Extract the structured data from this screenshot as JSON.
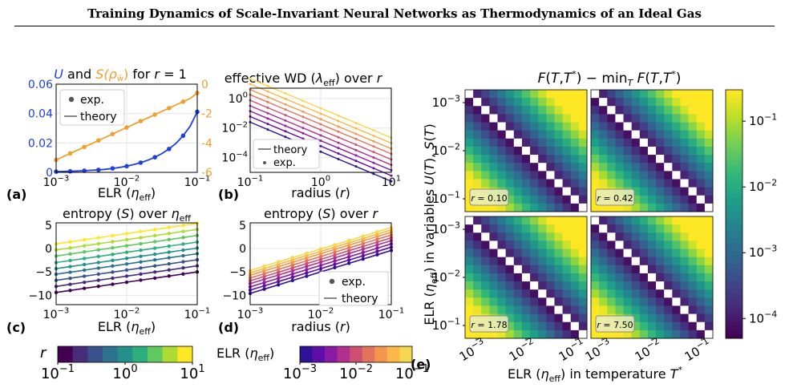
{
  "header": {
    "title": "Training Dynamics of Scale-Invariant Neural Networks as Thermodynamics of an Ideal Gas"
  },
  "panel_labels": {
    "a": "(a)",
    "b": "(b)",
    "c": "(c)",
    "d": "(d)",
    "e": "(e)"
  },
  "colors": {
    "blue": "#1f3fe0",
    "orange": "#f0a030",
    "gridline": "#e6e6e6"
  },
  "chart_data": [
    {
      "id": "a",
      "type": "line",
      "title": "U and S(ρw̄) for r = 1",
      "title_parts": {
        "p1": "U",
        "p2": " and ",
        "p3": "S(ρ",
        "p4": "w̄",
        "p5": ")",
        "p6": " for ",
        "p7": "r",
        "p8": " = 1"
      },
      "xlabel": "ELR (ηeff)",
      "xlabel_parts": {
        "pre": "ELR (",
        "sym": "η",
        "sub": "eff",
        "post": ")"
      },
      "xscale": "log",
      "xlim": [
        0.001,
        0.1
      ],
      "xticks": [
        0.001,
        0.01,
        0.1
      ],
      "xtick_labels": [
        "10^-3",
        "10^-2",
        "10^-1"
      ],
      "ylim_left": [
        0,
        0.06
      ],
      "yticks_left": [
        0,
        0.02,
        0.04,
        0.06
      ],
      "ytick_labels_left": [
        "0",
        "0.02",
        "0.04",
        "0.06"
      ],
      "ylim_right": [
        -6,
        0
      ],
      "yticks_right": [
        -6,
        -4,
        -2,
        0
      ],
      "ytick_labels_right": [
        "-6",
        "-4",
        "-2",
        "0"
      ],
      "legend": {
        "placement": "top-left",
        "entries": [
          "exp.",
          "theory"
        ]
      },
      "series": [
        {
          "name": "U",
          "axis": "left",
          "x": [
            0.001,
            0.00126,
            0.00158,
            0.002,
            0.00251,
            0.00316,
            0.00398,
            0.00501,
            0.00631,
            0.00794,
            0.01,
            0.0126,
            0.0158,
            0.02,
            0.0251,
            0.0316,
            0.0398,
            0.0501,
            0.0631,
            0.0794,
            0.1
          ],
          "y": [
            0.0005,
            0.0006,
            0.0007,
            0.0009,
            0.0011,
            0.0014,
            0.0017,
            0.0021,
            0.0027,
            0.0034,
            0.0042,
            0.0053,
            0.0066,
            0.0083,
            0.0103,
            0.0128,
            0.0159,
            0.0198,
            0.0249,
            0.0314,
            0.0412
          ]
        },
        {
          "name": "S",
          "axis": "right",
          "x": [
            0.001,
            0.00126,
            0.00158,
            0.002,
            0.00251,
            0.00316,
            0.00398,
            0.00501,
            0.00631,
            0.00794,
            0.01,
            0.0126,
            0.0158,
            0.02,
            0.0251,
            0.0316,
            0.0398,
            0.0501,
            0.0631,
            0.0794,
            0.1
          ],
          "y": [
            -5.15,
            -4.93,
            -4.71,
            -4.49,
            -4.27,
            -4.05,
            -3.83,
            -3.61,
            -3.39,
            -3.17,
            -2.95,
            -2.73,
            -2.51,
            -2.29,
            -2.07,
            -1.85,
            -1.63,
            -1.41,
            -1.19,
            -0.97,
            -0.6
          ]
        }
      ]
    },
    {
      "id": "b",
      "type": "line",
      "title": "effective WD (λeff) over r",
      "title_parts": {
        "p1": "effective WD (",
        "p2": "λ",
        "p3": "eff",
        "p4": ") over ",
        "p5": "r"
      },
      "xlabel": "radius (r)",
      "xlabel_parts": {
        "pre": "radius (",
        "sym": "r",
        "post": ")"
      },
      "xscale": "log",
      "yscale": "log",
      "xlim": [
        0.1,
        10
      ],
      "ylim": [
        1e-05,
        5
      ],
      "xticks": [
        0.1,
        1,
        10
      ],
      "xtick_labels": [
        "10^-1",
        "10^0",
        "10^1"
      ],
      "yticks": [
        0.0001,
        0.01,
        1
      ],
      "ytick_labels": [
        "10^-4",
        "10^-2",
        "10^0"
      ],
      "legend": {
        "placement": "bottom-left",
        "entries": [
          "theory",
          "exp."
        ]
      },
      "x": [
        0.1,
        0.178,
        0.316,
        0.562,
        1,
        1.78,
        3.16,
        5.62,
        10
      ],
      "series_eta": [
        0.1,
        0.0562,
        0.0316,
        0.0178,
        0.01,
        0.00562,
        0.00316,
        0.00178,
        0.001
      ],
      "series_y_at_r1": [
        0.22,
        0.095,
        0.04,
        0.018,
        0.0075,
        0.0032,
        0.0014,
        0.0006,
        0.00025
      ],
      "slope_per_decade": -2
    },
    {
      "id": "c",
      "type": "line",
      "title": "entropy (S) over ηeff",
      "title_parts": {
        "p1": "entropy (",
        "p2": "S",
        "p3": ") over ",
        "p4": "η",
        "p5": "eff"
      },
      "xlabel": "ELR (ηeff)",
      "xlabel_parts": {
        "pre": "ELR (",
        "sym": "η",
        "sub": "eff",
        "post": ")"
      },
      "xscale": "log",
      "xlim": [
        0.001,
        0.1
      ],
      "ylim": [
        -12,
        5.5
      ],
      "xticks": [
        0.001,
        0.01,
        0.1
      ],
      "xtick_labels": [
        "10^-3",
        "10^-2",
        "10^-1"
      ],
      "yticks": [
        -10,
        -5,
        0,
        5
      ],
      "ytick_labels": [
        "-10",
        "-5",
        "0",
        "5"
      ],
      "x": [
        0.001,
        0.00158,
        0.00251,
        0.00398,
        0.00631,
        0.01,
        0.0158,
        0.0251,
        0.0398,
        0.0631,
        0.1
      ],
      "series_r": [
        0.1,
        0.178,
        0.316,
        0.562,
        1,
        1.78,
        3.16,
        5.62,
        10
      ],
      "series_start": [
        -9.4,
        -8.1,
        -6.8,
        -5.5,
        -4.3,
        -3.0,
        -1.6,
        -0.3,
        1.0
      ],
      "slope_per_decade": 2.2
    },
    {
      "id": "d",
      "type": "line",
      "title": "entropy (S) over r",
      "title_parts": {
        "p1": "entropy (",
        "p2": "S",
        "p3": ") over ",
        "p4": "r"
      },
      "xlabel": "radius (r)",
      "xlabel_parts": {
        "pre": "radius (",
        "sym": "r",
        "post": ")"
      },
      "xscale": "log",
      "xlim": [
        0.001,
        0.1
      ],
      "ylim": [
        -12,
        5.5
      ],
      "xticks": [
        0.001,
        0.01,
        0.1
      ],
      "xtick_labels": [
        "10^-3",
        "10^-2",
        "10^-1"
      ],
      "yticks": [
        -10,
        -5,
        0,
        5
      ],
      "ytick_labels": [
        "-10",
        "-5",
        "0",
        "5"
      ],
      "legend": {
        "placement": "bottom-right",
        "entries": [
          "exp.",
          "theory"
        ]
      },
      "x": [
        0.001,
        0.00158,
        0.00251,
        0.00398,
        0.00631,
        0.01,
        0.0158,
        0.0251,
        0.0398,
        0.0631,
        0.1
      ],
      "series_eta": [
        0.001,
        0.00178,
        0.00316,
        0.00562,
        0.01,
        0.0178,
        0.0316,
        0.0562,
        0.1
      ],
      "series_start": [
        -9.6,
        -8.9,
        -8.2,
        -7.5,
        -6.9,
        -6.3,
        -5.7,
        -5.2,
        -4.7
      ],
      "slope_per_decade": 4.6
    },
    {
      "id": "e",
      "type": "heatmap",
      "title": "F(T,T*) − minT F(T,T*)",
      "title_parts": {
        "p1": "F",
        "p2": "(",
        "p3": "T",
        "p4": ",",
        "p5": "T",
        "p6": "*",
        "p7": ") − min",
        "p8": "T",
        "p9": " F",
        "p10": "(",
        "p11": "T",
        "p12": ",",
        "p13": "T",
        "p14": "*",
        "p15": ")"
      },
      "xlabel": "ELR (ηeff) in temperature T*",
      "xlabel_parts": {
        "pre": "ELR (",
        "sym": "η",
        "sub": "eff",
        "mid": ") in temperature ",
        "T": "T",
        "star": "*"
      },
      "ylabel": "ELR (ηeff) in variables U(T), S(T)",
      "ylabel_parts": {
        "pre": "ELR (",
        "sym": "η",
        "sub": "eff",
        "mid": ") in variables ",
        "U": "U",
        "p1": "(",
        "T1": "T",
        "p2": "), ",
        "S": "S",
        "p3": "(",
        "T2": "T",
        "p4": ")"
      },
      "xtick_labels": [
        "10^-3",
        "10^-2",
        "10^-1"
      ],
      "ytick_labels": [
        "10^-3",
        "10^-2",
        "10^-1"
      ],
      "grid_size": 15,
      "panel_labels": [
        "r = 0.10",
        "r = 0.42",
        "r = 1.78",
        "r = 7.50"
      ],
      "panel_r": [
        "0.10",
        "0.42",
        "1.78",
        "7.50"
      ],
      "colorbar": {
        "scale": "log",
        "range": [
          5e-05,
          0.3
        ],
        "ticks": [
          0.0001,
          0.001,
          0.01,
          0.1
        ],
        "tick_labels": [
          "10^-4",
          "10^-3",
          "10^-2",
          "10^-1"
        ]
      }
    }
  ],
  "colorbars": [
    {
      "id": "r-colorbar",
      "label": "r",
      "scale": "log",
      "range": [
        0.1,
        10
      ],
      "tick_labels": [
        "10^-1",
        "10^0",
        "10^1"
      ],
      "colormap": "viridis"
    },
    {
      "id": "elr-colorbar",
      "label": "ELR (ηeff)",
      "label_parts": {
        "pre": "ELR (",
        "sym": "η",
        "sub": "eff",
        "post": ")"
      },
      "scale": "log",
      "range": [
        0.001,
        0.1
      ],
      "tick_labels": [
        "10^-3",
        "10^-2",
        "10^-1"
      ],
      "colormap": "plasma"
    }
  ]
}
